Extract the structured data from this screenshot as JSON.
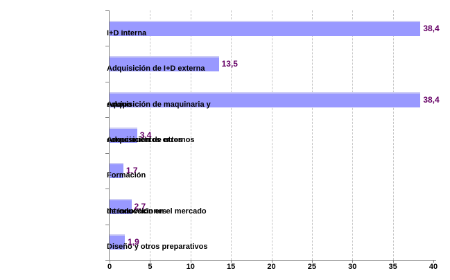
{
  "chart_data": {
    "type": "bar",
    "orientation": "horizontal",
    "title": "",
    "xlabel": "",
    "ylabel": "",
    "categories": [
      "I+D interna",
      "Adquisición de I+D externa",
      "Adquisición de maquinaria y equipo",
      "Adquisición de otros conocimientos externos",
      "Formación",
      "Introducción en el mercado de innovaciones",
      "Diseño y otros preparativos"
    ],
    "category_lines": [
      [
        "I+D interna"
      ],
      [
        "Adquisición de I+D externa"
      ],
      [
        "Adquisición de maquinaria y",
        "equipo"
      ],
      [
        "Adquisición de otros",
        "conocimientos externos"
      ],
      [
        "Formación"
      ],
      [
        "Introducción en el mercado",
        "de innovaciones"
      ],
      [
        "Diseño y otros preparativos"
      ]
    ],
    "values": [
      38.4,
      13.5,
      38.4,
      3.4,
      1.7,
      2.7,
      1.9
    ],
    "value_labels": [
      "38,4",
      "13,5",
      "38,4",
      "3,4",
      "1,7",
      "2,7",
      "1,9"
    ],
    "xlim": [
      0,
      40
    ],
    "xticks": [
      0,
      5,
      10,
      15,
      20,
      25,
      30,
      35,
      40
    ],
    "gridlines": [
      5,
      10,
      15,
      20,
      25,
      30,
      35
    ],
    "grid": "vertical-dashed",
    "legend": "none",
    "colors": {
      "bar": "#9999ff",
      "bar_top_edge": "#ccccf5",
      "value_label": "#660066",
      "axis": "#808080",
      "gridline": "#c6c6c6",
      "tick_label": "#000000",
      "background": "#ffffff"
    }
  }
}
